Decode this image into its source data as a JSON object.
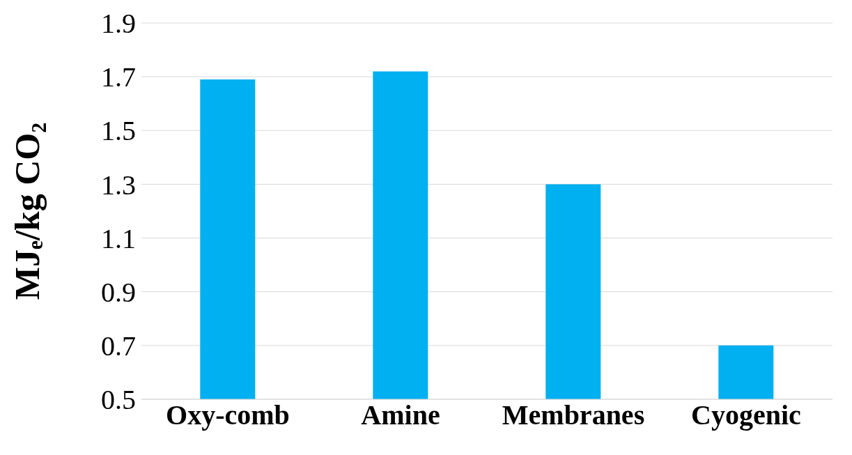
{
  "chart_data": {
    "type": "bar",
    "ylabel": "MJₑ/kg CO₂",
    "categories": [
      "Oxy-comb",
      "Amine",
      "Membranes",
      "Cyogenic"
    ],
    "values": [
      1.69,
      1.72,
      1.3,
      0.7
    ],
    "color": "#00b0f0",
    "ylim": [
      0.5,
      1.9
    ],
    "yticks": [
      0.5,
      0.7,
      0.9,
      1.1,
      1.3,
      1.5,
      1.7,
      1.9
    ],
    "grid": "y"
  }
}
